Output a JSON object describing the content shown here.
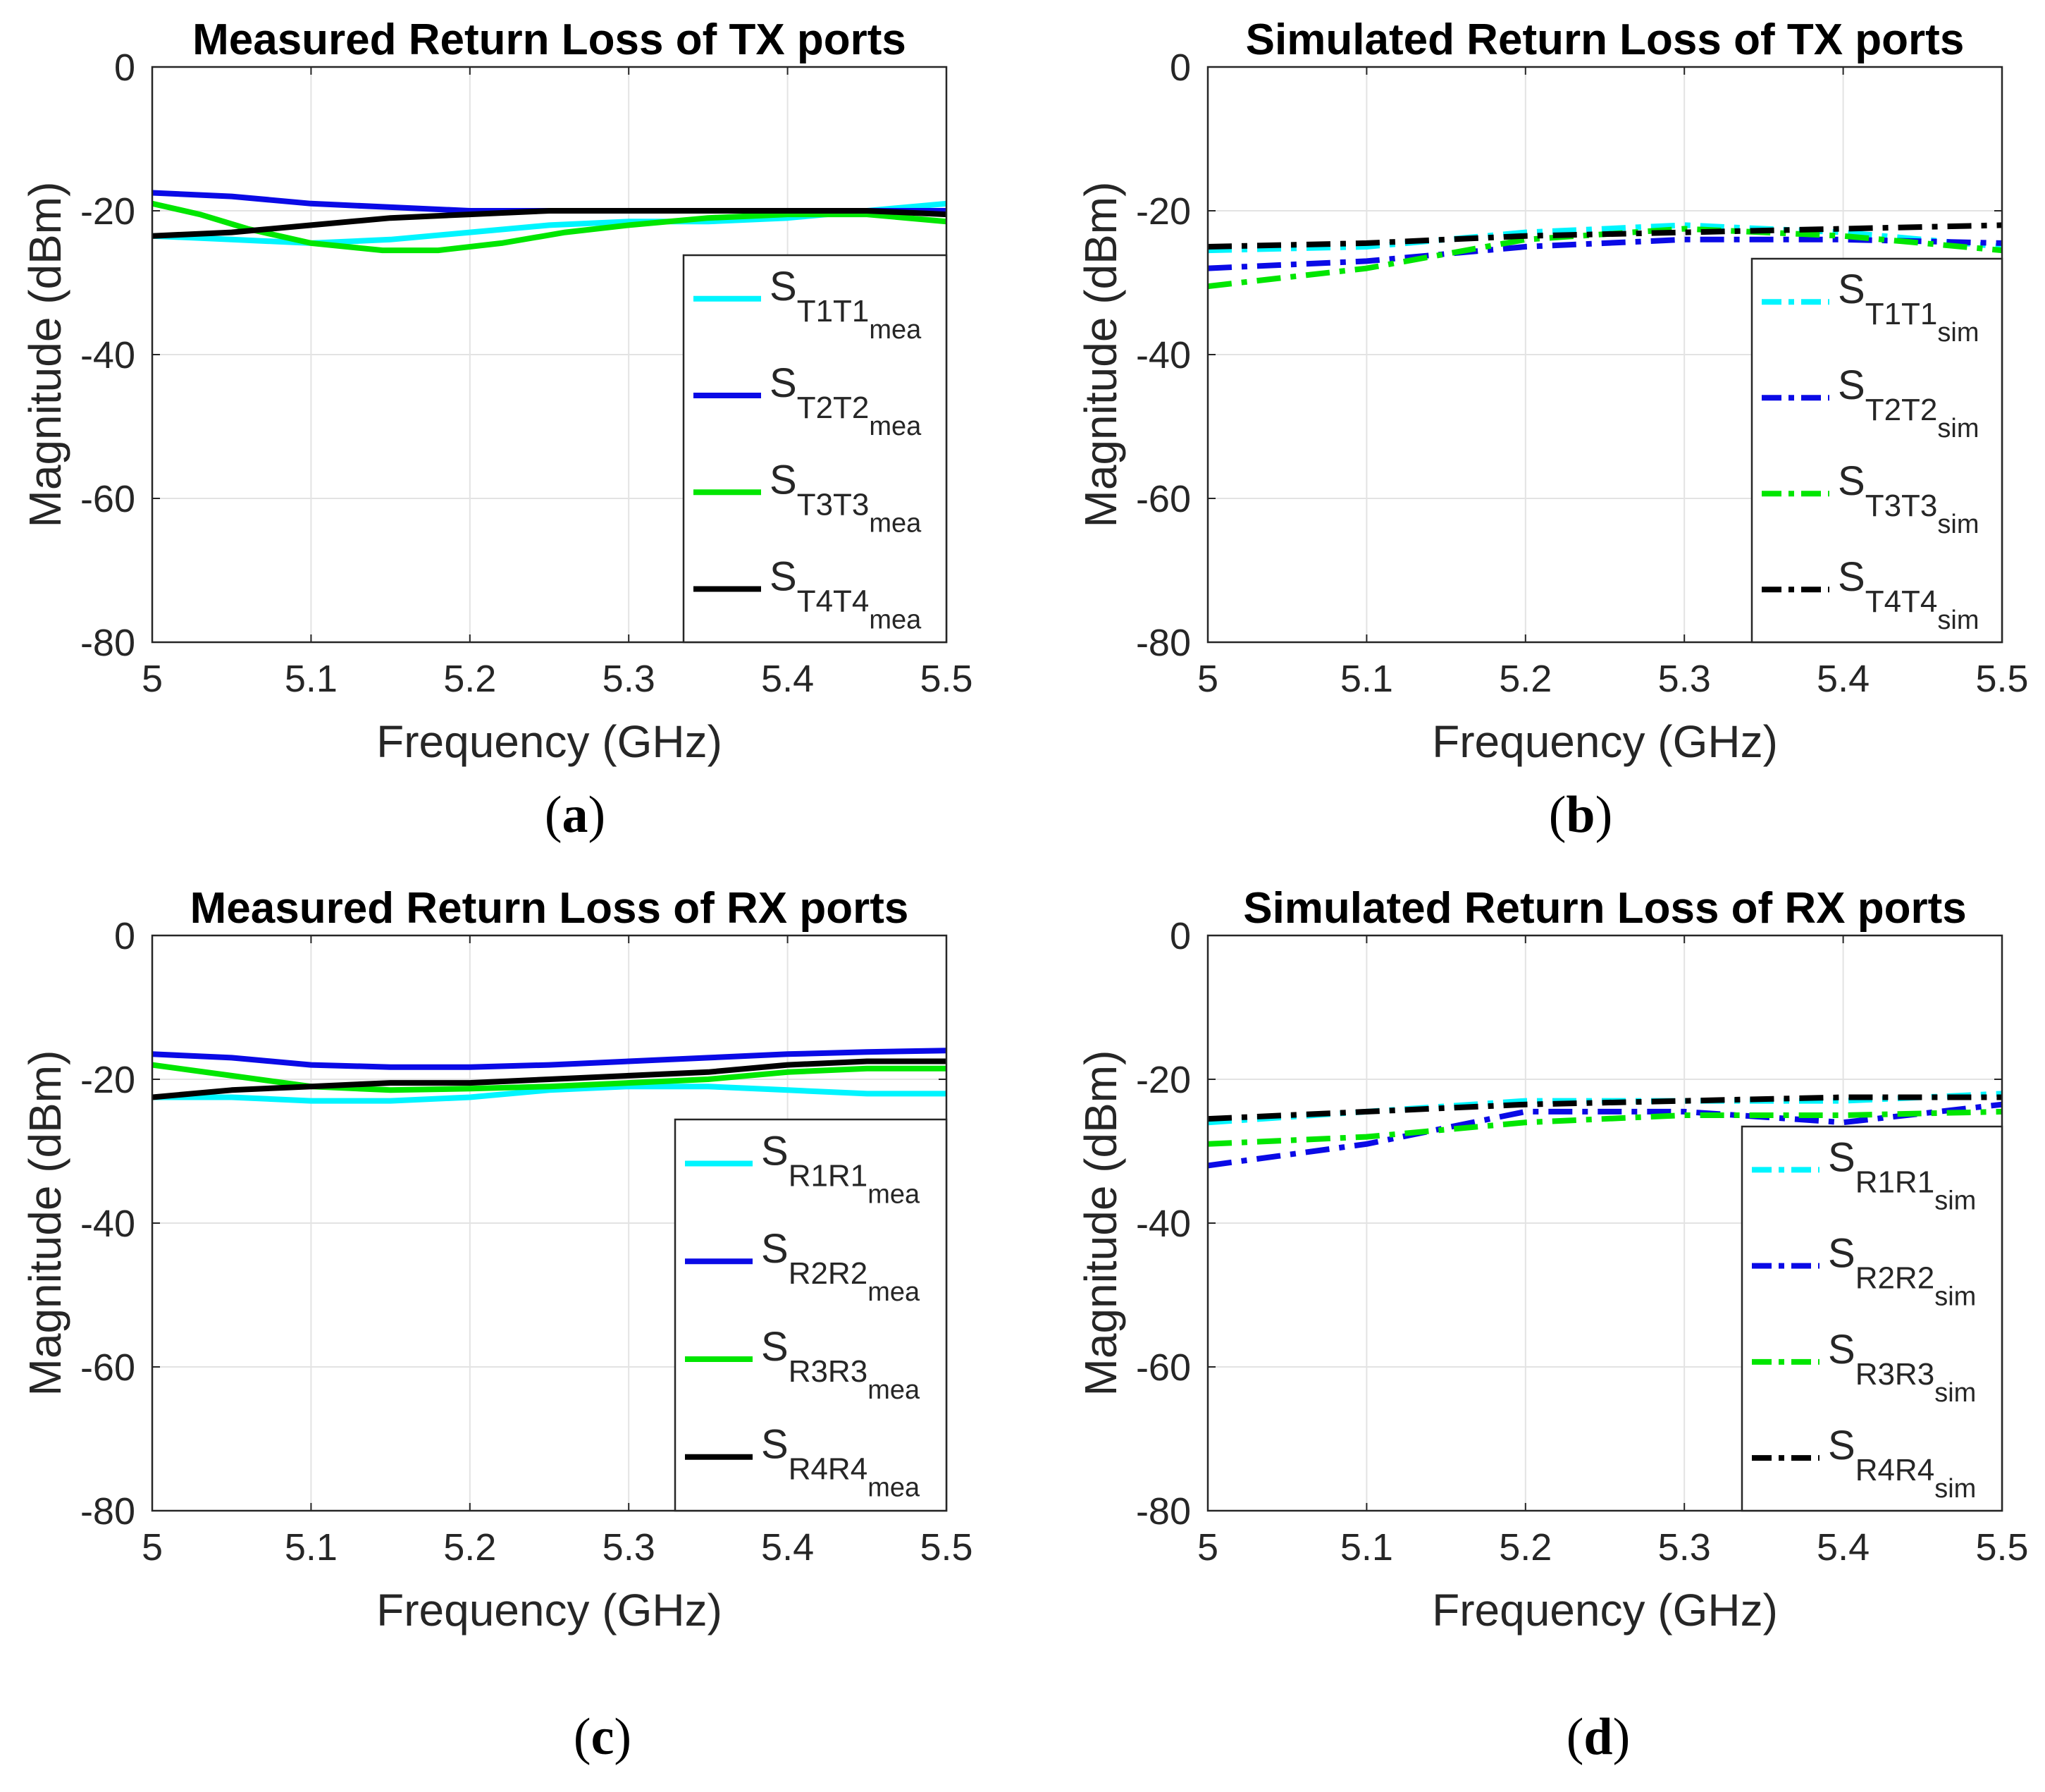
{
  "figure": {
    "colors": {
      "cyan": "#00f5ff",
      "blue": "#0a0ae6",
      "green": "#00e600",
      "black": "#000000",
      "grid": "#e3e3e3",
      "axis": "#262626"
    }
  },
  "chart_data": [
    {
      "id": "a",
      "type": "line",
      "title": "Measured Return Loss of TX ports",
      "caption_letter": "a",
      "xlabel": "Frequency (GHz)",
      "ylabel": "Magnitude (dBm)",
      "xlim": [
        5,
        5.5
      ],
      "ylim": [
        -80,
        0
      ],
      "xticks": [
        "5",
        "5.1",
        "5.2",
        "5.3",
        "5.4",
        "5.5"
      ],
      "yticks": [
        "0",
        "-20",
        "-40",
        "-60",
        "-80"
      ],
      "grid": true,
      "legend_position": "bottom-right",
      "series": [
        {
          "name": "S",
          "sub1": "T1T1",
          "sub2": "mea",
          "color": "cyan",
          "style": "solid",
          "x": [
            5,
            5.05,
            5.1,
            5.15,
            5.2,
            5.25,
            5.3,
            5.35,
            5.4,
            5.45,
            5.5
          ],
          "y": [
            -23.5,
            -24,
            -24.5,
            -24,
            -23,
            -22,
            -21.5,
            -21.5,
            -21,
            -20,
            -19
          ]
        },
        {
          "name": "S",
          "sub1": "T2T2",
          "sub2": "mea",
          "color": "blue",
          "style": "solid",
          "x": [
            5,
            5.05,
            5.1,
            5.15,
            5.2,
            5.25,
            5.3,
            5.35,
            5.4,
            5.45,
            5.5
          ],
          "y": [
            -17.5,
            -18,
            -19,
            -19.5,
            -20,
            -20,
            -20,
            -20,
            -20,
            -20,
            -20
          ]
        },
        {
          "name": "S",
          "sub1": "T3T3",
          "sub2": "mea",
          "color": "green",
          "style": "solid",
          "x": [
            5,
            5.03,
            5.06,
            5.1,
            5.145,
            5.18,
            5.22,
            5.26,
            5.3,
            5.35,
            5.4,
            5.45,
            5.5
          ],
          "y": [
            -19,
            -20.5,
            -22.5,
            -24.5,
            -25.5,
            -25.5,
            -24.5,
            -23,
            -22,
            -21,
            -20.5,
            -20.5,
            -21.5
          ]
        },
        {
          "name": "S",
          "sub1": "T4T4",
          "sub2": "mea",
          "color": "black",
          "style": "solid",
          "x": [
            5,
            5.05,
            5.1,
            5.15,
            5.2,
            5.25,
            5.3,
            5.35,
            5.4,
            5.45,
            5.5
          ],
          "y": [
            -23.5,
            -23,
            -22,
            -21,
            -20.5,
            -20,
            -20,
            -20,
            -20,
            -20,
            -20.5
          ]
        }
      ]
    },
    {
      "id": "b",
      "type": "line",
      "title": "Simulated Return Loss of TX ports",
      "caption_letter": "b",
      "xlabel": "Frequency (GHz)",
      "ylabel": "Magnitude (dBm)",
      "xlim": [
        5,
        5.5
      ],
      "ylim": [
        -80,
        0
      ],
      "xticks": [
        "5",
        "5.1",
        "5.2",
        "5.3",
        "5.4",
        "5.5"
      ],
      "yticks": [
        "0",
        "-20",
        "-40",
        "-60",
        "-80"
      ],
      "grid": true,
      "legend_position": "bottom-right",
      "series": [
        {
          "name": "S",
          "sub1": "T1T1",
          "sub2": "sim",
          "color": "cyan",
          "style": "dashdot",
          "x": [
            5,
            5.1,
            5.2,
            5.3,
            5.4,
            5.5
          ],
          "y": [
            -25.5,
            -25,
            -23,
            -22,
            -23,
            -25
          ]
        },
        {
          "name": "S",
          "sub1": "T2T2",
          "sub2": "sim",
          "color": "blue",
          "style": "dashdot",
          "x": [
            5,
            5.1,
            5.2,
            5.3,
            5.4,
            5.5
          ],
          "y": [
            -28,
            -27,
            -25,
            -24,
            -24,
            -24.5
          ]
        },
        {
          "name": "S",
          "sub1": "T3T3",
          "sub2": "sim",
          "color": "green",
          "style": "dashdot",
          "x": [
            5,
            5.1,
            5.2,
            5.3,
            5.4,
            5.5
          ],
          "y": [
            -30.5,
            -28,
            -24,
            -22.5,
            -23.5,
            -25.5
          ]
        },
        {
          "name": "S",
          "sub1": "T4T4",
          "sub2": "sim",
          "color": "black",
          "style": "dashdot",
          "x": [
            5,
            5.1,
            5.2,
            5.3,
            5.4,
            5.5
          ],
          "y": [
            -25,
            -24.5,
            -23.5,
            -23,
            -22.5,
            -22
          ]
        }
      ]
    },
    {
      "id": "c",
      "type": "line",
      "title": "Measured Return Loss of RX ports",
      "caption_letter": "c",
      "xlabel": "Frequency (GHz)",
      "ylabel": "Magnitude (dBm)",
      "xlim": [
        5,
        5.5
      ],
      "ylim": [
        -80,
        0
      ],
      "xticks": [
        "5",
        "5.1",
        "5.2",
        "5.3",
        "5.4",
        "5.5"
      ],
      "yticks": [
        "0",
        "-20",
        "-40",
        "-60",
        "-80"
      ],
      "grid": true,
      "legend_position": "bottom-right",
      "series": [
        {
          "name": "S",
          "sub1": "R1R1",
          "sub2": "mea",
          "color": "cyan",
          "style": "solid",
          "x": [
            5,
            5.05,
            5.1,
            5.15,
            5.2,
            5.25,
            5.3,
            5.35,
            5.4,
            5.45,
            5.5
          ],
          "y": [
            -22.5,
            -22.5,
            -23,
            -23,
            -22.5,
            -21.5,
            -21,
            -21,
            -21.5,
            -22,
            -22
          ]
        },
        {
          "name": "S",
          "sub1": "R2R2",
          "sub2": "mea",
          "color": "blue",
          "style": "solid",
          "x": [
            5,
            5.05,
            5.1,
            5.15,
            5.2,
            5.25,
            5.3,
            5.35,
            5.4,
            5.45,
            5.5
          ],
          "y": [
            -16.5,
            -17,
            -18,
            -18.3,
            -18.3,
            -18,
            -17.5,
            -17,
            -16.5,
            -16.2,
            -16
          ]
        },
        {
          "name": "S",
          "sub1": "R3R3",
          "sub2": "mea",
          "color": "green",
          "style": "solid",
          "x": [
            5,
            5.05,
            5.1,
            5.15,
            5.2,
            5.25,
            5.3,
            5.35,
            5.4,
            5.45,
            5.5
          ],
          "y": [
            -18,
            -19.5,
            -21,
            -21.5,
            -21.3,
            -21,
            -20.5,
            -20,
            -19,
            -18.5,
            -18.5
          ]
        },
        {
          "name": "S",
          "sub1": "R4R4",
          "sub2": "mea",
          "color": "black",
          "style": "solid",
          "x": [
            5,
            5.05,
            5.1,
            5.15,
            5.2,
            5.25,
            5.3,
            5.35,
            5.4,
            5.45,
            5.5
          ],
          "y": [
            -22.5,
            -21.5,
            -21,
            -20.5,
            -20.5,
            -20,
            -19.5,
            -19,
            -18,
            -17.5,
            -17.5
          ]
        }
      ]
    },
    {
      "id": "d",
      "type": "line",
      "title": "Simulated Return Loss of RX ports",
      "caption_letter": "d",
      "xlabel": "Frequency (GHz)",
      "ylabel": "Magnitude (dBm)",
      "xlim": [
        5,
        5.5
      ],
      "ylim": [
        -80,
        0
      ],
      "xticks": [
        "5",
        "5.1",
        "5.2",
        "5.3",
        "5.4",
        "5.5"
      ],
      "yticks": [
        "0",
        "-20",
        "-40",
        "-60",
        "-80"
      ],
      "grid": true,
      "legend_position": "bottom-right",
      "series": [
        {
          "name": "S",
          "sub1": "R1R1",
          "sub2": "sim",
          "color": "cyan",
          "style": "dashdot",
          "x": [
            5,
            5.1,
            5.2,
            5.3,
            5.4,
            5.5
          ],
          "y": [
            -26,
            -24.5,
            -23,
            -23,
            -23,
            -22
          ]
        },
        {
          "name": "S",
          "sub1": "R2R2",
          "sub2": "sim",
          "color": "blue",
          "style": "dashdot",
          "x": [
            5,
            5.1,
            5.2,
            5.3,
            5.4,
            5.5
          ],
          "y": [
            -32,
            -29,
            -24.5,
            -24.5,
            -26,
            -23.5
          ]
        },
        {
          "name": "S",
          "sub1": "R3R3",
          "sub2": "sim",
          "color": "green",
          "style": "dashdot",
          "x": [
            5,
            5.1,
            5.2,
            5.3,
            5.4,
            5.5
          ],
          "y": [
            -29,
            -28,
            -26,
            -25,
            -25,
            -24.5
          ]
        },
        {
          "name": "S",
          "sub1": "R4R4",
          "sub2": "sim",
          "color": "black",
          "style": "dashdot",
          "x": [
            5,
            5.1,
            5.2,
            5.3,
            5.4,
            5.5
          ],
          "y": [
            -25.5,
            -24.5,
            -23.5,
            -23,
            -22.5,
            -22.5
          ]
        }
      ]
    }
  ]
}
